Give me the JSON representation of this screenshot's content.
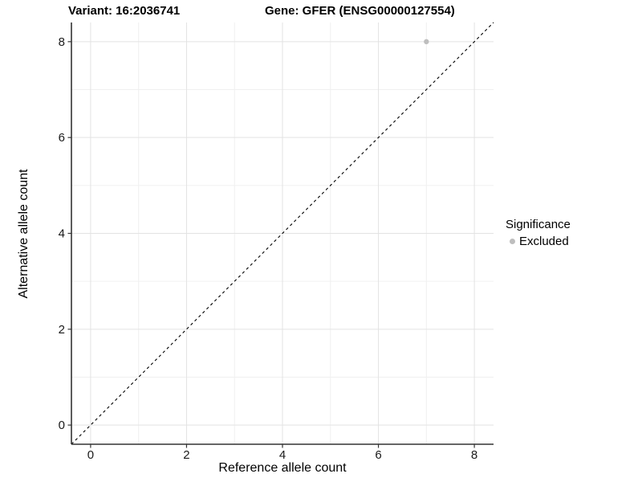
{
  "figure": {
    "title_left": "Variant: 16:2036741",
    "title_right": "Gene: GFER (ENSG00000127554)"
  },
  "legend": {
    "title": "Significance",
    "entries": [
      {
        "label": "Excluded",
        "color": "#bebebe"
      }
    ],
    "position": "right"
  },
  "chart_data": {
    "type": "scatter",
    "title": "Variant: 16:2036741  /  Gene: GFER (ENSG00000127554)",
    "xlabel": "Reference allele count",
    "ylabel": "Alternative allele count",
    "xlim": [
      -0.4,
      8.4
    ],
    "ylim": [
      -0.4,
      8.4
    ],
    "x_major_ticks": [
      0,
      2,
      4,
      6,
      8
    ],
    "y_major_ticks": [
      0,
      2,
      4,
      6,
      8
    ],
    "x_minor_gridlines": [
      1,
      3,
      5,
      7
    ],
    "y_minor_gridlines": [
      1,
      3,
      5,
      7
    ],
    "grid": true,
    "reference_line": {
      "style": "dashed",
      "equation": "y = x",
      "color": "#000000"
    },
    "series": [
      {
        "name": "Excluded",
        "color": "#bebebe",
        "points": [
          {
            "x": 7,
            "y": 8
          }
        ]
      }
    ],
    "legend_position": "right"
  },
  "colors": {
    "background": "#ffffff",
    "major_grid": "#e3e3e3",
    "minor_grid": "#f0f0f0",
    "axis_line": "#333333",
    "tick_text": "#1a1a1a",
    "excluded_point": "#bebebe",
    "reference_line": "#000000"
  }
}
